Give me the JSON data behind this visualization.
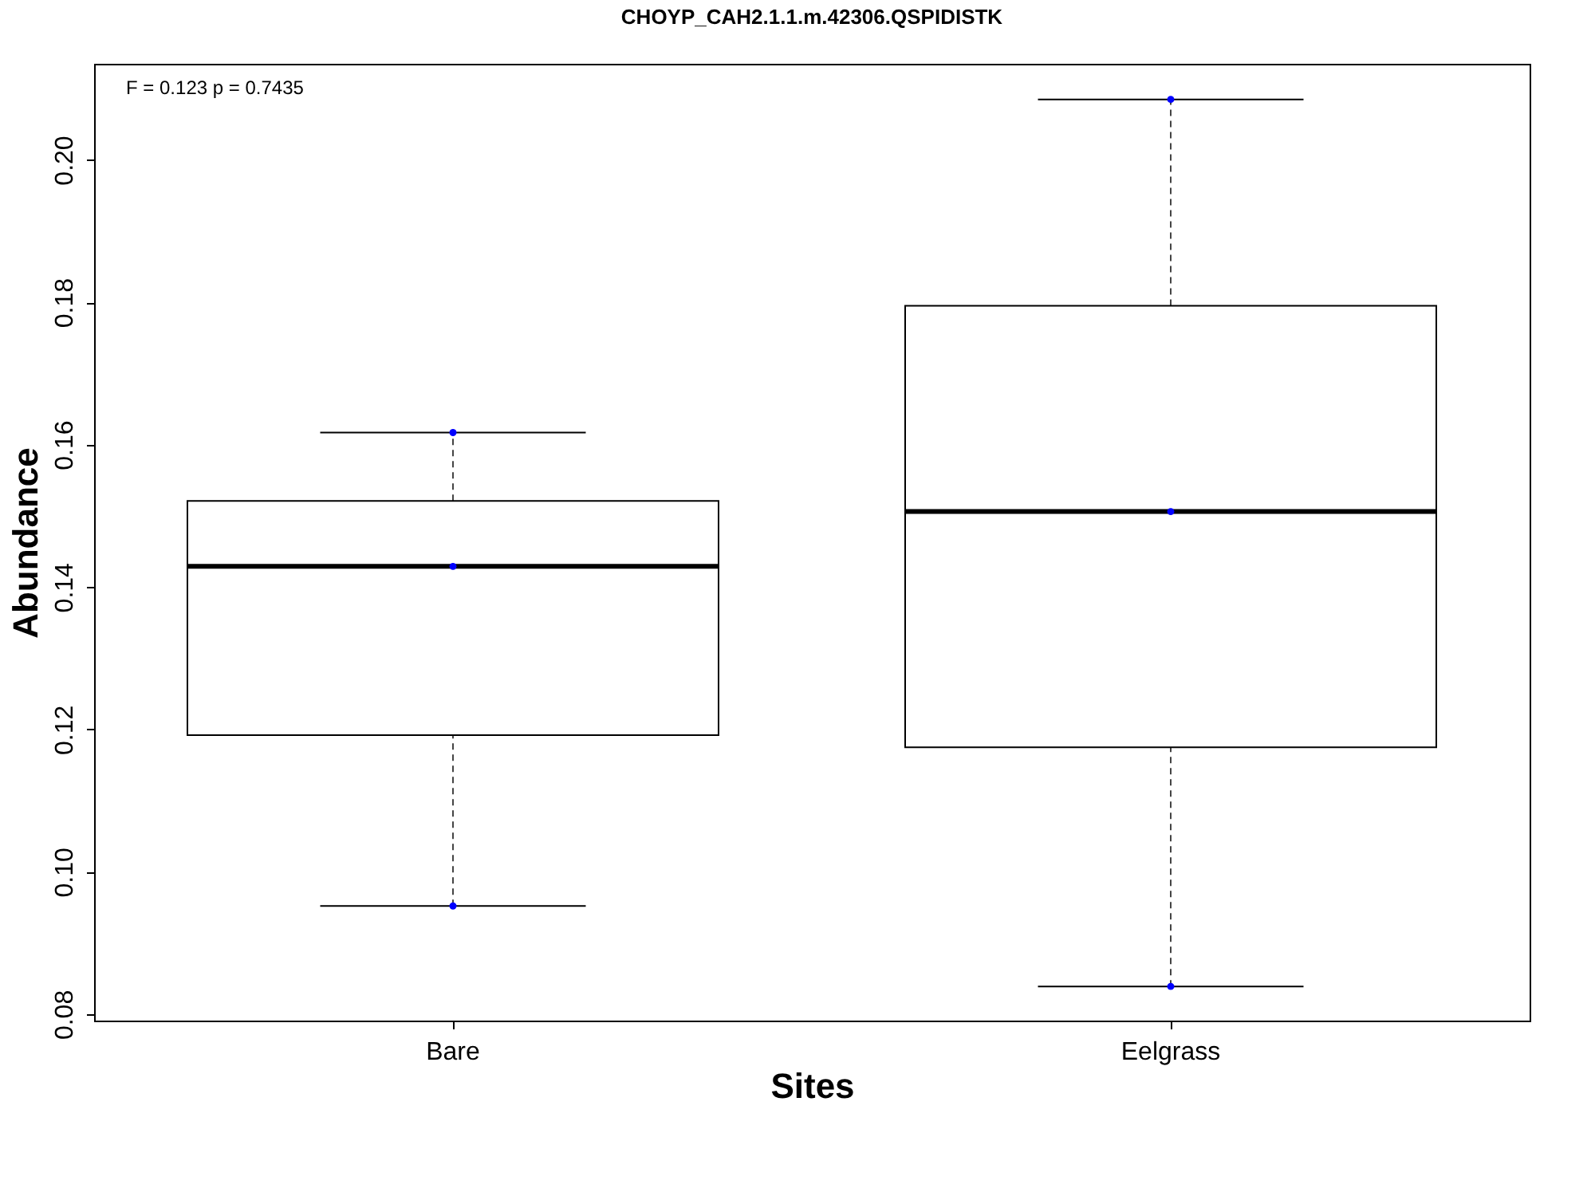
{
  "chart_data": {
    "type": "box",
    "title": "CHOYP_CAH2.1.1.m.42306.QSPIDISTK",
    "xlabel": "Sites",
    "ylabel": "Abundance",
    "categories": [
      "Bare",
      "Eelgrass"
    ],
    "boxes": [
      {
        "low": 0.0952,
        "q1": 0.1192,
        "median": 0.1429,
        "q3": 0.1521,
        "high": 0.1617
      },
      {
        "low": 0.0839,
        "q1": 0.1175,
        "median": 0.1506,
        "q3": 0.1795,
        "high": 0.2085
      }
    ],
    "series": [
      {
        "type": "scatter",
        "color": "#0000ff",
        "x": [
          "Bare",
          "Bare",
          "Bare",
          "Eelgrass",
          "Eelgrass",
          "Eelgrass"
        ],
        "values": [
          0.0952,
          0.1429,
          0.1617,
          0.2085,
          0.1506,
          0.0839
        ]
      }
    ],
    "ylim": [
      0.0791,
      0.2135
    ],
    "yticks": [
      0.08,
      {
        "value": 0.1,
        "label": "0.10"
      },
      0.12,
      0.14,
      0.16,
      0.18,
      {
        "value": 0.2,
        "label": "0.20"
      }
    ],
    "annotations": [
      "F = 0.123 p = 0.7435"
    ],
    "grid": false
  }
}
